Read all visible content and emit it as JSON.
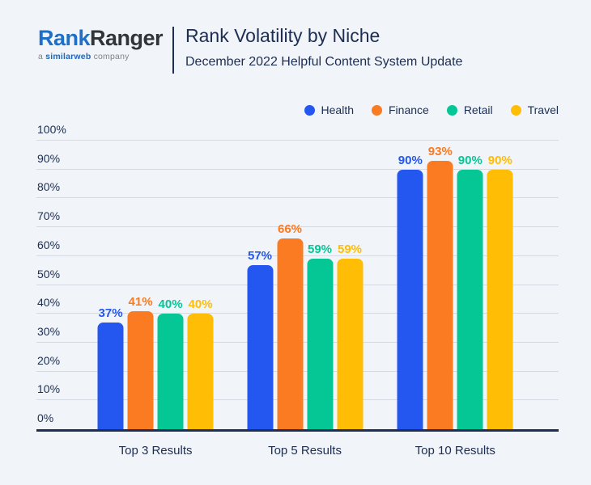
{
  "header": {
    "logo": {
      "brand_primary": "Rank",
      "brand_secondary": "Ranger",
      "tagline_prefix": "a ",
      "tagline_brand": "similarweb",
      "tagline_suffix": " company"
    },
    "title": "Rank Volatility by Niche",
    "subtitle": "December 2022 Helpful Content System Update"
  },
  "chart_data": {
    "type": "bar",
    "title": "Rank Volatility by Niche",
    "subtitle": "December 2022 Helpful Content System Update",
    "categories": [
      "Top 3 Results",
      "Top 5 Results",
      "Top 10 Results"
    ],
    "series": [
      {
        "name": "Health",
        "color": "#2357F0",
        "values": [
          37,
          57,
          90
        ]
      },
      {
        "name": "Finance",
        "color": "#FA7B21",
        "values": [
          41,
          66,
          93
        ]
      },
      {
        "name": "Retail",
        "color": "#05C795",
        "values": [
          40,
          59,
          90
        ]
      },
      {
        "name": "Travel",
        "color": "#FFBD06",
        "values": [
          40,
          59,
          90
        ]
      }
    ],
    "ylim": [
      0,
      100
    ],
    "y_ticks": [
      "0%",
      "10%",
      "20%",
      "30%",
      "40%",
      "50%",
      "60%",
      "70%",
      "80%",
      "90%",
      "100%"
    ],
    "value_suffix": "%",
    "grid": true,
    "legend_position": "top-right"
  },
  "colors": {
    "background": "#F1F4F9",
    "text": "#1C2E52",
    "gridline": "#D6DAE3",
    "axis": "#1C2E52",
    "logo_blue": "#1E6FC8",
    "logo_dark": "#313439",
    "tagline_gray": "#7F8489",
    "tagline_brand_blue": "#2566B0"
  }
}
